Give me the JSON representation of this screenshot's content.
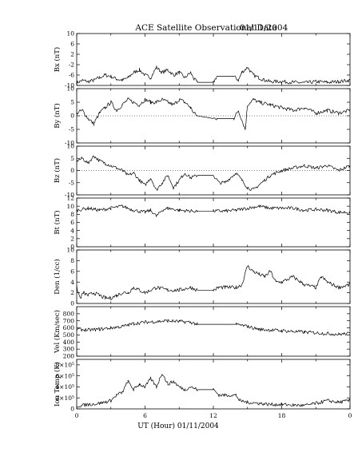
{
  "title": "ACE Satellite Observational Data",
  "date": "01/11/2004",
  "xlabel": "UT (Hour)   01/11/2004",
  "x_ticks": [
    "0",
    "6",
    "12",
    "18",
    "0"
  ],
  "chart_data": [
    {
      "type": "line",
      "ylabel": "Bx (nT)",
      "ylim": [
        -10,
        10
      ],
      "yticks": [
        "10",
        "6",
        "2",
        "-2",
        "-6",
        "-10"
      ],
      "ytick_values": [
        10,
        6,
        2,
        -2,
        -6,
        -10
      ],
      "zero_line": false,
      "x_unit": "hour",
      "x": [
        0,
        0.5,
        1,
        1.5,
        2,
        2.5,
        3,
        3.5,
        4,
        4.5,
        5,
        5.5,
        6,
        6.5,
        7,
        7.5,
        8,
        8.5,
        9,
        9.5,
        10,
        10.3,
        10.6,
        12,
        12.3,
        13.8,
        14.2,
        14.5,
        15,
        15.5,
        16,
        16.5,
        17,
        18,
        19,
        20,
        21,
        22,
        23,
        24
      ],
      "series": [
        {
          "values": [
            -9,
            -8,
            -8.5,
            -8,
            -7,
            -6,
            -6.5,
            -7.5,
            -8,
            -7,
            -5,
            -4,
            -6,
            -7,
            -3,
            -5,
            -4,
            -6,
            -5,
            -7,
            -5,
            -7.5,
            -8.8,
            -8.8,
            -6.5,
            -6.5,
            -8,
            -5,
            -3,
            -6,
            -7,
            -8,
            -8.5,
            -8.5,
            -8.8,
            -9,
            -8.5,
            -8.8,
            -8.5,
            -8
          ]
        }
      ]
    },
    {
      "type": "line",
      "ylabel": "By (nT)",
      "ylim": [
        -10,
        10
      ],
      "yticks": [
        "10",
        "5",
        "0",
        "-5",
        "-10"
      ],
      "ytick_values": [
        10,
        5,
        0,
        -5,
        -10
      ],
      "zero_line": true,
      "x_unit": "hour",
      "x": [
        0,
        0.5,
        1,
        1.5,
        2,
        2.5,
        3,
        3.5,
        4,
        4.5,
        5,
        5.5,
        6,
        6.5,
        7,
        7.5,
        8,
        8.5,
        9,
        9.5,
        10,
        10.3,
        10.6,
        12,
        12.3,
        13.8,
        14.2,
        14.8,
        15,
        15.5,
        16,
        17,
        18,
        19,
        20,
        21,
        22,
        23,
        24
      ],
      "series": [
        {
          "values": [
            1,
            2,
            -1,
            -3,
            1,
            3,
            5,
            2,
            4,
            6,
            5,
            4,
            6,
            5,
            5,
            6,
            5,
            4,
            6,
            5,
            3,
            1,
            0,
            -1,
            -1,
            -1,
            2,
            -5,
            4,
            6,
            5,
            4,
            3,
            2,
            3,
            1,
            2,
            1,
            2
          ]
        }
      ]
    },
    {
      "type": "line",
      "ylabel": "Bz (nT)",
      "ylim": [
        -10,
        10
      ],
      "yticks": [
        "10",
        "5",
        "0",
        "-5",
        "-10"
      ],
      "ytick_values": [
        10,
        5,
        0,
        -5,
        -10
      ],
      "zero_line": true,
      "x_unit": "hour",
      "x": [
        0,
        0.5,
        1,
        1.5,
        2,
        2.5,
        3,
        3.5,
        4,
        4.5,
        5,
        5.5,
        6,
        6.5,
        7,
        7.5,
        8,
        8.5,
        9,
        9.5,
        10,
        10.6,
        12,
        12.5,
        13,
        14,
        14.5,
        15,
        15.5,
        16,
        17,
        18,
        19,
        20,
        21,
        22,
        23,
        24
      ],
      "series": [
        {
          "values": [
            4,
            5,
            3,
            6,
            4,
            3,
            2,
            1,
            0,
            -2,
            -1,
            -4,
            -6,
            -3,
            -8,
            -5,
            -2,
            -7,
            -4,
            -1,
            -3,
            -2,
            -2,
            -5,
            -5,
            -1,
            -4,
            -7,
            -8,
            -6,
            -2,
            0,
            1,
            2,
            1,
            2,
            0,
            2
          ]
        }
      ]
    },
    {
      "type": "line",
      "ylabel": "Bt (nT)",
      "ylim": [
        0,
        12
      ],
      "yticks": [
        "12",
        "10",
        "8",
        "6",
        "4",
        "2",
        "0"
      ],
      "ytick_values": [
        12,
        10,
        8,
        6,
        4,
        2,
        0
      ],
      "zero_line": false,
      "x_unit": "hour",
      "x": [
        0,
        1,
        2,
        3,
        4,
        5,
        6,
        6.5,
        7,
        7.5,
        8,
        9,
        10,
        10.6,
        12,
        13,
        14,
        15,
        16,
        17,
        18,
        19,
        20,
        21,
        22,
        23,
        24
      ],
      "series": [
        {
          "values": [
            9,
            9.5,
            9,
            9.5,
            10,
            9,
            8.5,
            9,
            7.5,
            9,
            9.5,
            9,
            8.8,
            8.8,
            8.8,
            8.8,
            9,
            9.5,
            10,
            9.5,
            9.5,
            9.5,
            9,
            9.2,
            9,
            8.5,
            8.5
          ]
        }
      ]
    },
    {
      "type": "line",
      "ylabel": "Den (1/cc)",
      "ylim": [
        0,
        10
      ],
      "yticks": [
        "10",
        "8",
        "6",
        "4",
        "2",
        "0"
      ],
      "ytick_values": [
        10,
        8,
        6,
        4,
        2,
        0
      ],
      "zero_line": false,
      "x_unit": "hour",
      "x": [
        0,
        0.3,
        0.6,
        1,
        1.5,
        2,
        2.5,
        3,
        3.5,
        4,
        4.5,
        5,
        5.5,
        6,
        7,
        8,
        9,
        10,
        10.6,
        12,
        12.5,
        13,
        14,
        14.5,
        15,
        15.5,
        16,
        16.5,
        17,
        17.5,
        18,
        19,
        20,
        21,
        21.5,
        22,
        23,
        24
      ],
      "series": [
        {
          "values": [
            3,
            1,
            2,
            1.5,
            2,
            1.5,
            1,
            1,
            1.5,
            2,
            2,
            3,
            2.5,
            2,
            3,
            2.5,
            2.5,
            3,
            2.5,
            2.5,
            3,
            3,
            3,
            3.5,
            7,
            6,
            5.5,
            5,
            6,
            4,
            4,
            5,
            3.5,
            3,
            5,
            4,
            3,
            3.5
          ]
        }
      ]
    },
    {
      "type": "line",
      "ylabel": "Vel (Km/sec)",
      "ylim": [
        200,
        900
      ],
      "yticks": [
        "800",
        "700",
        "600",
        "500",
        "400",
        "300",
        "200"
      ],
      "ytick_values": [
        800,
        700,
        600,
        500,
        400,
        300,
        200
      ],
      "zero_line": false,
      "x_unit": "hour",
      "x": [
        0,
        1,
        2,
        3,
        4,
        5,
        6,
        7,
        8,
        9,
        10,
        10.6,
        12,
        14,
        15,
        16,
        17,
        18,
        19,
        20,
        21,
        22,
        23,
        24
      ],
      "series": [
        {
          "values": [
            580,
            570,
            580,
            600,
            620,
            660,
            680,
            690,
            700,
            690,
            680,
            650,
            650,
            650,
            620,
            580,
            570,
            560,
            550,
            540,
            530,
            520,
            510,
            520
          ]
        }
      ]
    },
    {
      "type": "line",
      "ylabel": "Ion Temp (K)",
      "ylim": [
        0,
        900000
      ],
      "yticks": [
        "8×10⁵",
        "6×10⁵",
        "4×10⁵",
        "2×10⁵",
        "0"
      ],
      "ytick_values": [
        800000,
        600000,
        400000,
        200000,
        0
      ],
      "zero_line": false,
      "x_unit": "hour",
      "x": [
        0,
        1,
        2,
        3,
        3.5,
        4,
        4.5,
        5,
        5.5,
        6,
        6.5,
        7,
        7.5,
        8,
        8.5,
        9,
        9.5,
        10,
        10.6,
        12,
        12.5,
        13,
        14,
        14.3,
        15,
        16,
        17,
        18,
        19,
        20,
        21,
        22,
        23,
        24
      ],
      "series": [
        {
          "values": [
            50000,
            80000,
            100000,
            150000,
            250000,
            300000,
            500000,
            350000,
            450000,
            400000,
            550000,
            400000,
            650000,
            450000,
            500000,
            400000,
            350000,
            400000,
            350000,
            350000,
            250000,
            250000,
            250000,
            150000,
            120000,
            100000,
            80000,
            80000,
            70000,
            60000,
            100000,
            150000,
            120000,
            150000
          ]
        }
      ]
    }
  ]
}
